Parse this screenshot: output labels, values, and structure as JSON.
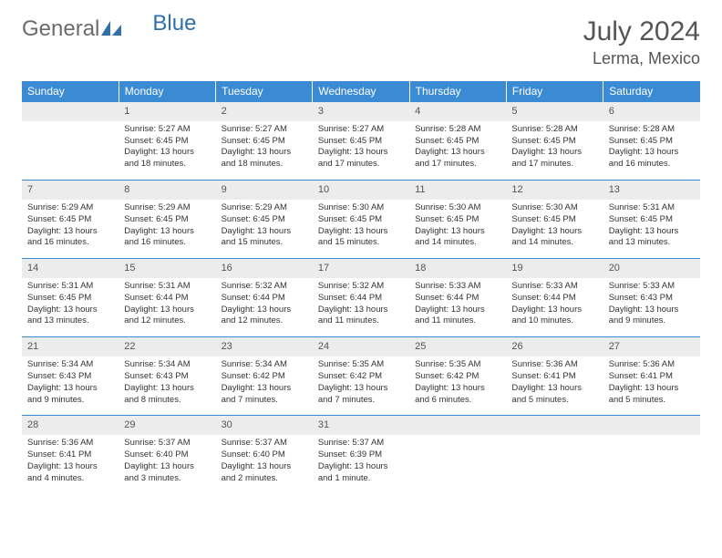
{
  "logo": {
    "part1": "General",
    "part2": "Blue"
  },
  "title": "July 2024",
  "location": "Lerma, Mexico",
  "colors": {
    "header_bg": "#3b8bd4",
    "header_text": "#ffffff",
    "daynum_bg": "#ececec",
    "border": "#3b8bd4",
    "logo_gray": "#6b6b6b",
    "logo_blue": "#2f6fad"
  },
  "weekdays": [
    "Sunday",
    "Monday",
    "Tuesday",
    "Wednesday",
    "Thursday",
    "Friday",
    "Saturday"
  ],
  "weeks": [
    {
      "nums": [
        "",
        "1",
        "2",
        "3",
        "4",
        "5",
        "6"
      ],
      "cells": [
        "",
        "Sunrise: 5:27 AM\nSunset: 6:45 PM\nDaylight: 13 hours and 18 minutes.",
        "Sunrise: 5:27 AM\nSunset: 6:45 PM\nDaylight: 13 hours and 18 minutes.",
        "Sunrise: 5:27 AM\nSunset: 6:45 PM\nDaylight: 13 hours and 17 minutes.",
        "Sunrise: 5:28 AM\nSunset: 6:45 PM\nDaylight: 13 hours and 17 minutes.",
        "Sunrise: 5:28 AM\nSunset: 6:45 PM\nDaylight: 13 hours and 17 minutes.",
        "Sunrise: 5:28 AM\nSunset: 6:45 PM\nDaylight: 13 hours and 16 minutes."
      ]
    },
    {
      "nums": [
        "7",
        "8",
        "9",
        "10",
        "11",
        "12",
        "13"
      ],
      "cells": [
        "Sunrise: 5:29 AM\nSunset: 6:45 PM\nDaylight: 13 hours and 16 minutes.",
        "Sunrise: 5:29 AM\nSunset: 6:45 PM\nDaylight: 13 hours and 16 minutes.",
        "Sunrise: 5:29 AM\nSunset: 6:45 PM\nDaylight: 13 hours and 15 minutes.",
        "Sunrise: 5:30 AM\nSunset: 6:45 PM\nDaylight: 13 hours and 15 minutes.",
        "Sunrise: 5:30 AM\nSunset: 6:45 PM\nDaylight: 13 hours and 14 minutes.",
        "Sunrise: 5:30 AM\nSunset: 6:45 PM\nDaylight: 13 hours and 14 minutes.",
        "Sunrise: 5:31 AM\nSunset: 6:45 PM\nDaylight: 13 hours and 13 minutes."
      ]
    },
    {
      "nums": [
        "14",
        "15",
        "16",
        "17",
        "18",
        "19",
        "20"
      ],
      "cells": [
        "Sunrise: 5:31 AM\nSunset: 6:45 PM\nDaylight: 13 hours and 13 minutes.",
        "Sunrise: 5:31 AM\nSunset: 6:44 PM\nDaylight: 13 hours and 12 minutes.",
        "Sunrise: 5:32 AM\nSunset: 6:44 PM\nDaylight: 13 hours and 12 minutes.",
        "Sunrise: 5:32 AM\nSunset: 6:44 PM\nDaylight: 13 hours and 11 minutes.",
        "Sunrise: 5:33 AM\nSunset: 6:44 PM\nDaylight: 13 hours and 11 minutes.",
        "Sunrise: 5:33 AM\nSunset: 6:44 PM\nDaylight: 13 hours and 10 minutes.",
        "Sunrise: 5:33 AM\nSunset: 6:43 PM\nDaylight: 13 hours and 9 minutes."
      ]
    },
    {
      "nums": [
        "21",
        "22",
        "23",
        "24",
        "25",
        "26",
        "27"
      ],
      "cells": [
        "Sunrise: 5:34 AM\nSunset: 6:43 PM\nDaylight: 13 hours and 9 minutes.",
        "Sunrise: 5:34 AM\nSunset: 6:43 PM\nDaylight: 13 hours and 8 minutes.",
        "Sunrise: 5:34 AM\nSunset: 6:42 PM\nDaylight: 13 hours and 7 minutes.",
        "Sunrise: 5:35 AM\nSunset: 6:42 PM\nDaylight: 13 hours and 7 minutes.",
        "Sunrise: 5:35 AM\nSunset: 6:42 PM\nDaylight: 13 hours and 6 minutes.",
        "Sunrise: 5:36 AM\nSunset: 6:41 PM\nDaylight: 13 hours and 5 minutes.",
        "Sunrise: 5:36 AM\nSunset: 6:41 PM\nDaylight: 13 hours and 5 minutes."
      ]
    },
    {
      "nums": [
        "28",
        "29",
        "30",
        "31",
        "",
        "",
        ""
      ],
      "cells": [
        "Sunrise: 5:36 AM\nSunset: 6:41 PM\nDaylight: 13 hours and 4 minutes.",
        "Sunrise: 5:37 AM\nSunset: 6:40 PM\nDaylight: 13 hours and 3 minutes.",
        "Sunrise: 5:37 AM\nSunset: 6:40 PM\nDaylight: 13 hours and 2 minutes.",
        "Sunrise: 5:37 AM\nSunset: 6:39 PM\nDaylight: 13 hours and 1 minute.",
        "",
        "",
        ""
      ]
    }
  ]
}
